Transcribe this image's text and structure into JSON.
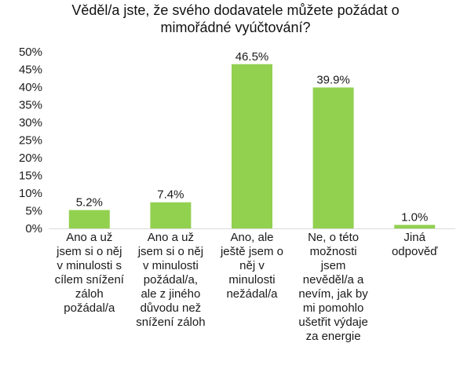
{
  "chart_data": {
    "type": "bar",
    "title_lines": [
      "Věděl/a jste, že svého dodavatele můžete požádat o",
      "mimořádné vyúčtování?"
    ],
    "categories": [
      [
        "Ano a už",
        "jsem si o něj",
        "v minulosti s",
        "cílem snížení",
        "záloh",
        "požádal/a"
      ],
      [
        "Ano a už",
        "jsem si o něj",
        "v minulosti",
        "požádal/a,",
        "ale z jiného",
        "důvodu než",
        "snížení záloh"
      ],
      [
        "Ano, ale",
        "ještě jsem o",
        "něj v",
        "minulosti",
        "nežádal/a"
      ],
      [
        "Ne, o této",
        "možnosti",
        "jsem",
        "nevěděl/a a",
        "nevím, jak by",
        "mi pomohlo",
        "ušetřit výdaje",
        "za energie"
      ],
      [
        "Jiná",
        "odpověď"
      ]
    ],
    "values": [
      5.2,
      7.4,
      46.5,
      39.9,
      1.0
    ],
    "data_labels": [
      "5.2%",
      "7.4%",
      "46.5%",
      "39.9%",
      "1.0%"
    ],
    "y_ticks": [
      "0%",
      "5%",
      "10%",
      "15%",
      "20%",
      "25%",
      "30%",
      "35%",
      "40%",
      "45%",
      "50%"
    ],
    "ylim": [
      0,
      50
    ],
    "grid": false,
    "legend": "none",
    "bar_color": "#92d050"
  }
}
